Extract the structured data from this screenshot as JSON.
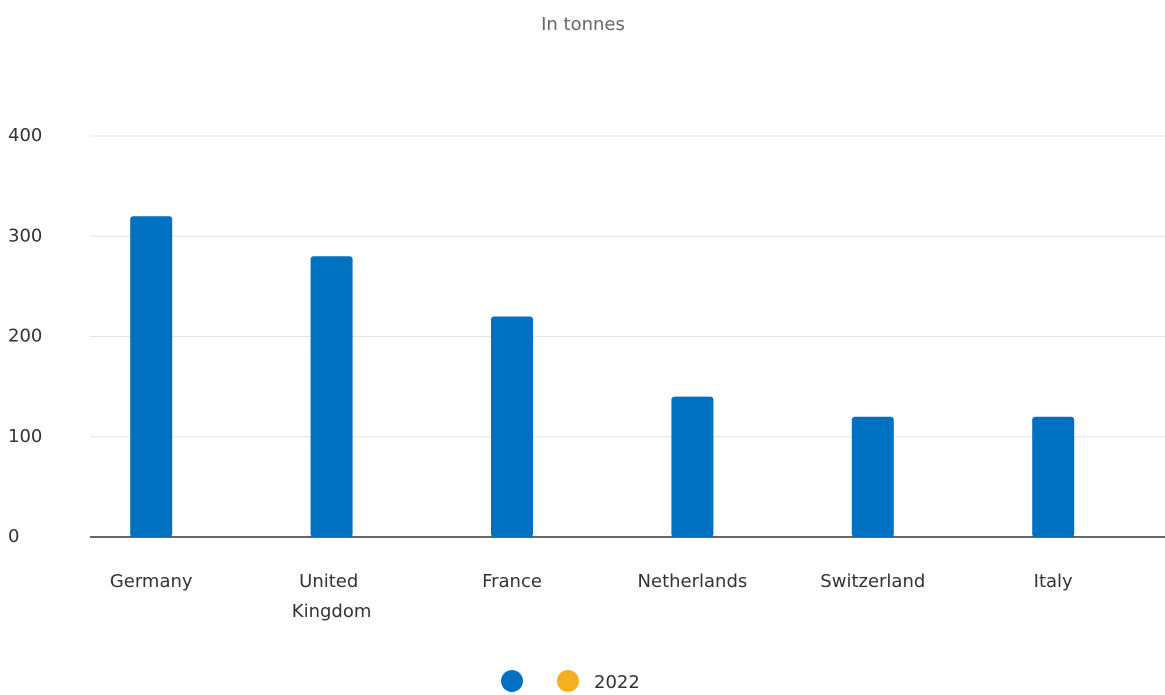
{
  "chart_data": {
    "type": "bar",
    "subtitle": "In tonnes",
    "categories": [
      "Germany",
      "United Kingdom",
      "France",
      "Netherlands",
      "Switzerland",
      "Italy"
    ],
    "series": [
      {
        "color": "#0070c0",
        "values": [
          320,
          280,
          220,
          140,
          120,
          120
        ]
      },
      {
        "name": "2022",
        "color": "#f5b021",
        "values": [
          null,
          null,
          null,
          null,
          null,
          null
        ]
      }
    ],
    "ylim": [
      0,
      400
    ],
    "yticks": [
      0,
      100,
      200,
      300,
      400
    ],
    "grid": true
  }
}
